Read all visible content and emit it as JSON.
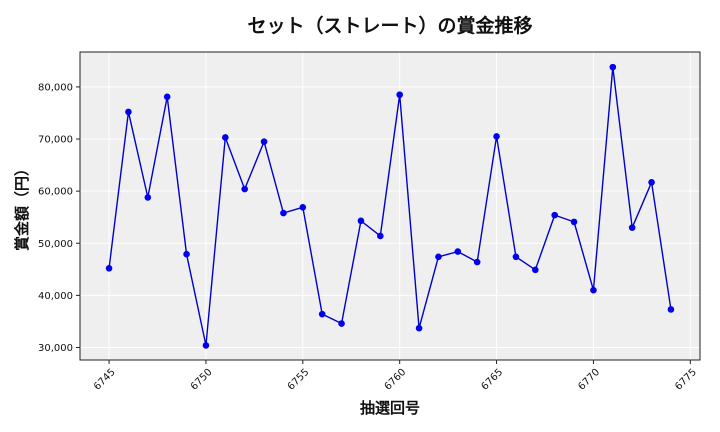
{
  "chart_data": {
    "type": "line",
    "title": "セット（ストレート）の賞金推移",
    "xlabel": "抽選回号",
    "ylabel": "賞金額（円）",
    "x": [
      6745,
      6746,
      6747,
      6748,
      6749,
      6750,
      6751,
      6752,
      6753,
      6754,
      6755,
      6756,
      6757,
      6758,
      6759,
      6760,
      6761,
      6762,
      6763,
      6764,
      6765,
      6766,
      6767,
      6768,
      6769,
      6770,
      6771,
      6772,
      6773,
      6774
    ],
    "series": [
      {
        "values": [
          45200,
          75200,
          58800,
          78100,
          47900,
          30400,
          70300,
          60400,
          69500,
          55800,
          56900,
          36400,
          34600,
          54300,
          51400,
          78500,
          33700,
          47400,
          48400,
          46400,
          70500,
          47400,
          44900,
          55400,
          54100,
          41000,
          83800,
          53000,
          61700,
          37300
        ]
      }
    ],
    "xlim": [
      6743.5,
      6775.5
    ],
    "ylim": [
      27600,
      86700
    ],
    "xticks": [
      6745,
      6750,
      6755,
      6760,
      6765,
      6770,
      6775
    ],
    "xtick_labels": [
      "6745",
      "6750",
      "6755",
      "6760",
      "6765",
      "6770",
      "6775"
    ],
    "yticks": [
      30000,
      40000,
      50000,
      60000,
      70000,
      80000
    ],
    "ytick_labels": [
      "30,000",
      "40,000",
      "50,000",
      "60,000",
      "70,000",
      "80,000"
    ],
    "grid": true,
    "colors": {
      "line": "#0000cc",
      "marker": "#0000ee",
      "plot_bg": "#efefef",
      "grid": "#ffffff"
    }
  }
}
